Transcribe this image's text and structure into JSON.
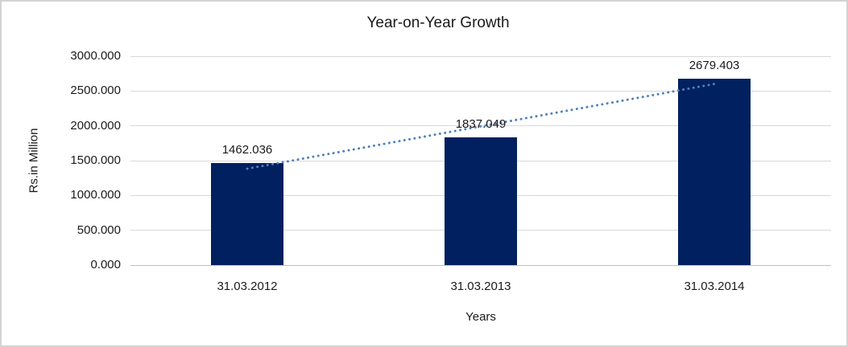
{
  "chart_data": {
    "type": "bar",
    "title": "Year-on-Year Growth",
    "xlabel": "Years",
    "ylabel": "Rs.in Million",
    "categories": [
      "31.03.2012",
      "31.03.2013",
      "31.03.2014"
    ],
    "values": [
      1462.036,
      1837.049,
      2679.403
    ],
    "value_labels": [
      "1462.036",
      "1837.049",
      "2679.403"
    ],
    "ylim": [
      0,
      3000
    ],
    "ytick_step": 500,
    "ytick_labels": [
      "0.000",
      "500.000",
      "1000.000",
      "1500.000",
      "2000.000",
      "2500.000",
      "3000.000"
    ],
    "grid": "horizontal",
    "legend": "none",
    "trendline": {
      "type": "linear",
      "style": "dotted"
    },
    "colors": {
      "bar": "#002060",
      "trendline": "#4f81bd",
      "gridline": "#d9d9d9",
      "baseline": "#bfbfbf",
      "border": "#d3d3d3",
      "text": "#1a1a1a"
    }
  }
}
